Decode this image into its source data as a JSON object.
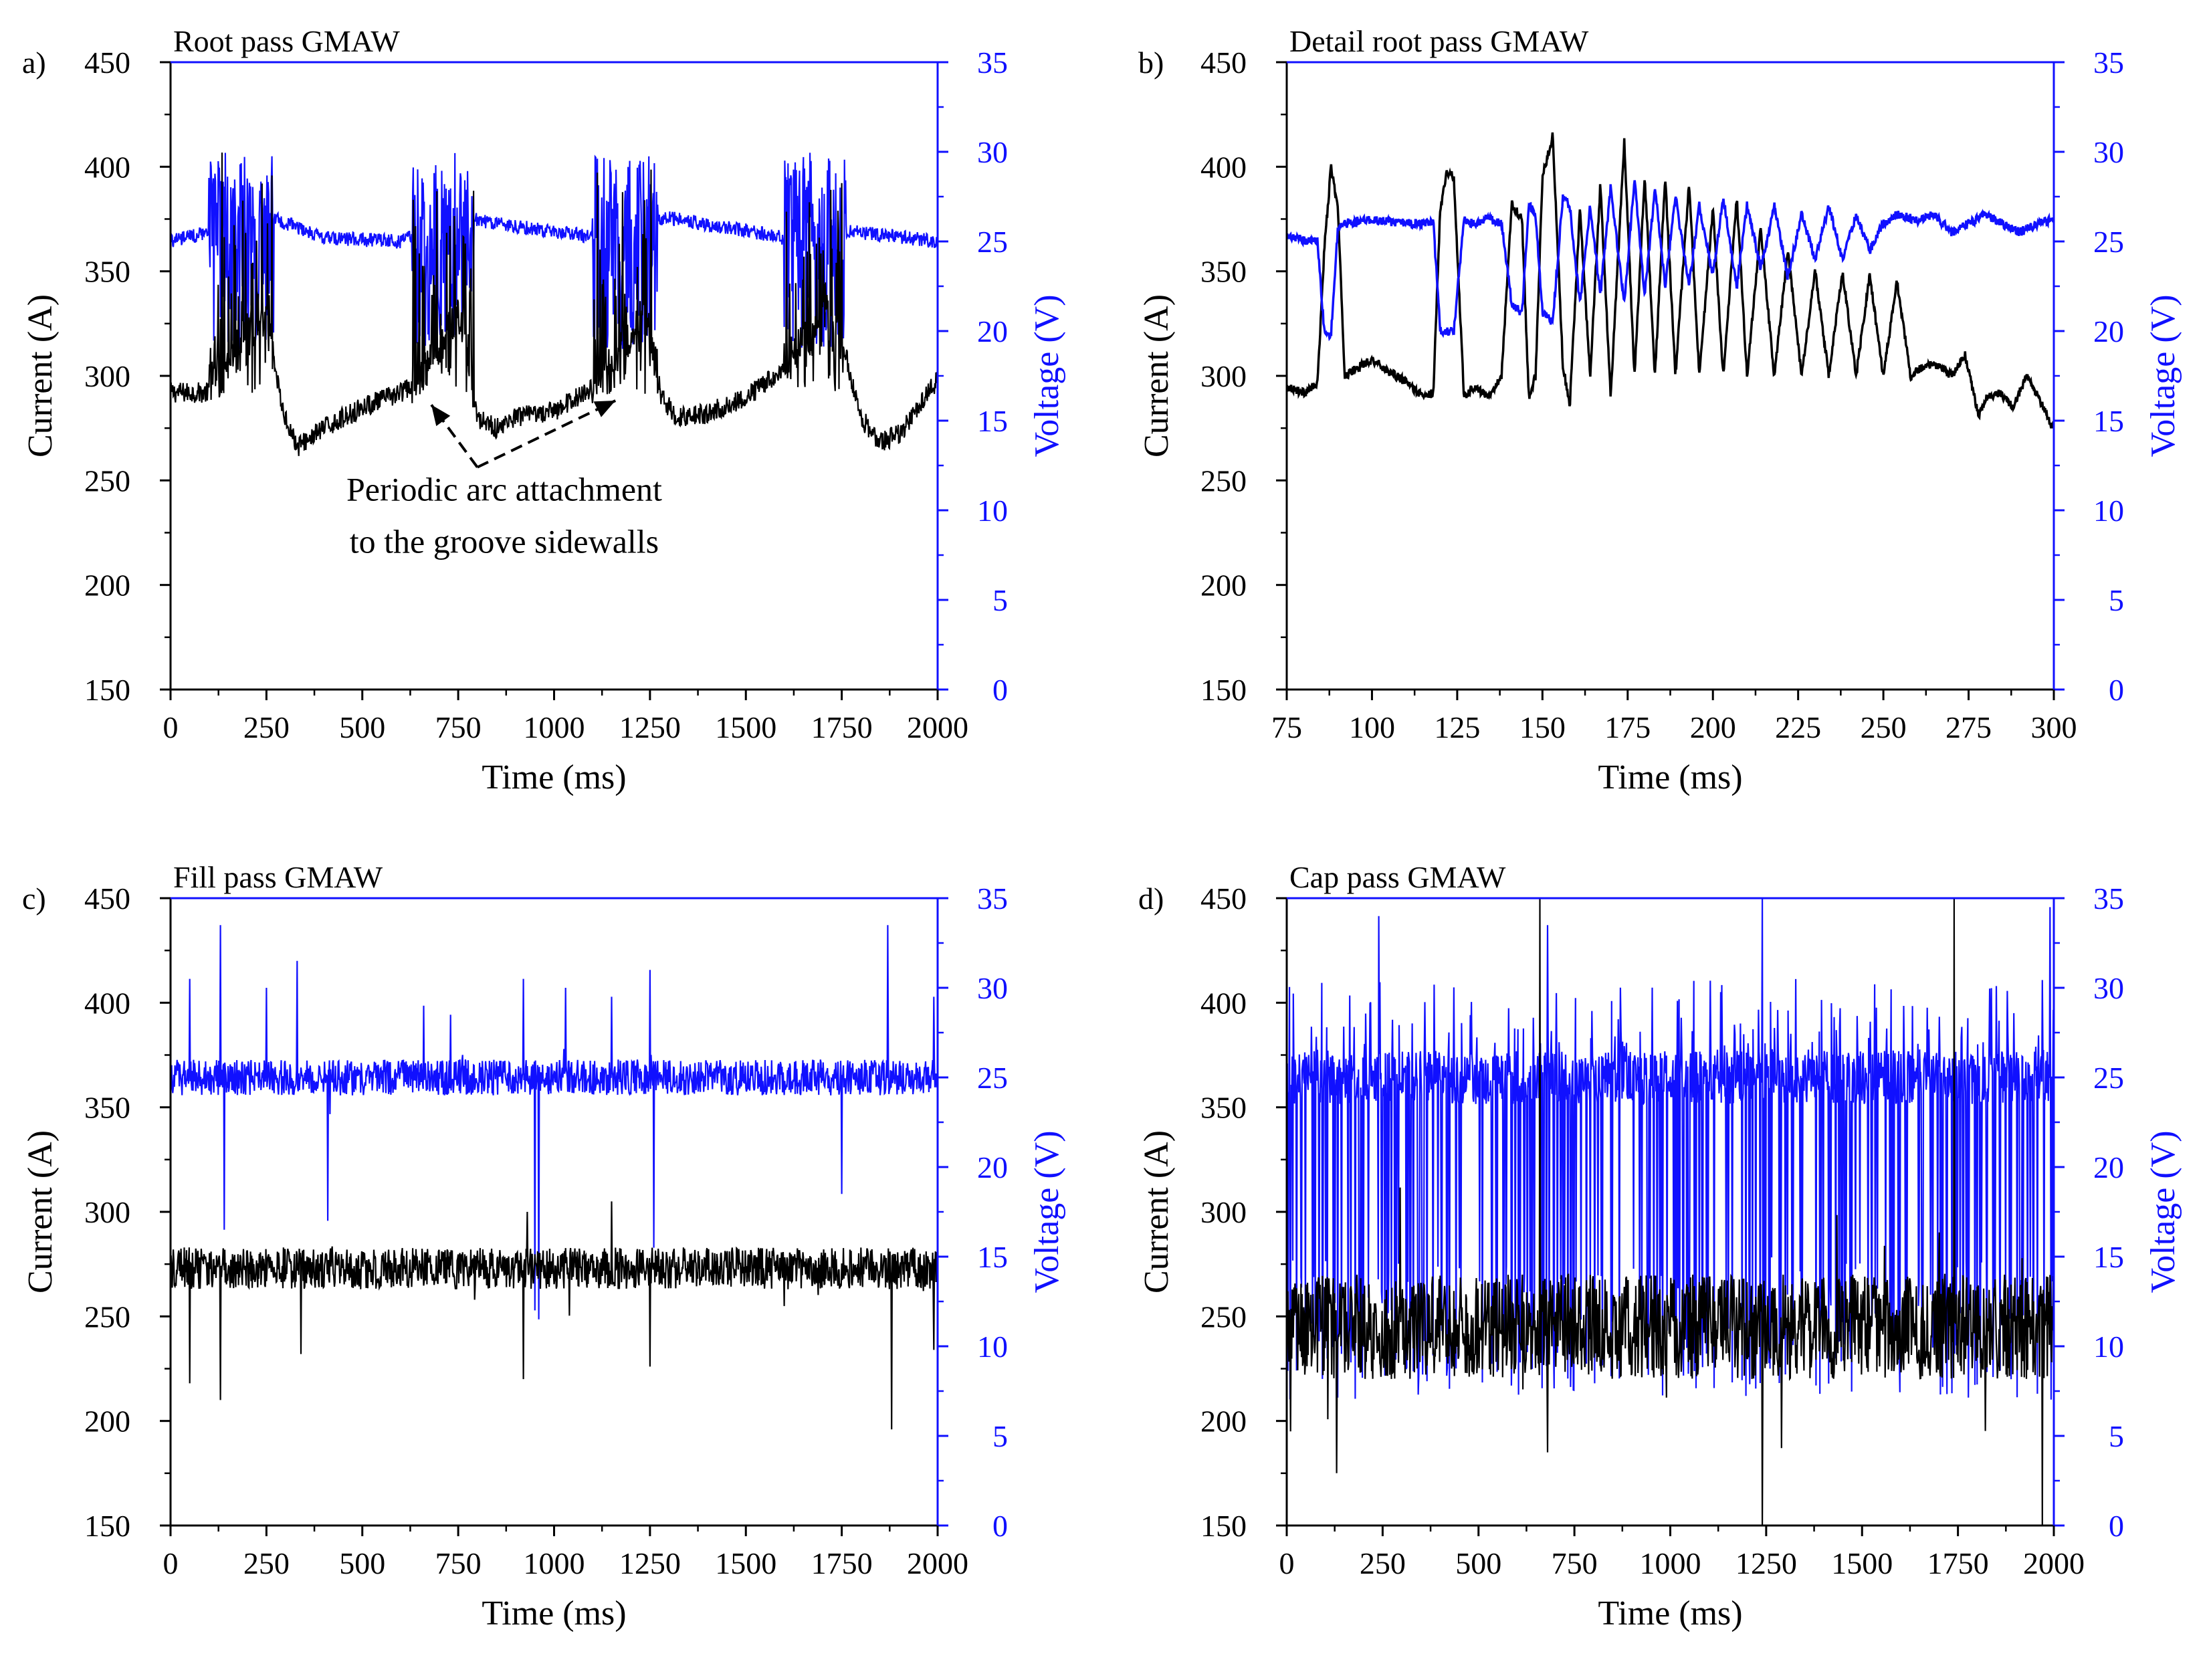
{
  "colors": {
    "current": "#000000",
    "voltage": "#1010ff"
  },
  "chart_data": [
    {
      "type": "line",
      "panel": "a)",
      "title": "Root pass GMAW",
      "xlabel": "Time (ms)",
      "ylabel_left": "Current (A)",
      "ylabel_right": "Voltage (V)",
      "xlim": [
        0,
        2000
      ],
      "ylim_left": [
        150,
        450
      ],
      "ylim_right": [
        0,
        35
      ],
      "xticks": [
        "0",
        "250",
        "500",
        "750",
        "1000",
        "1250",
        "1500",
        "1750",
        "2000"
      ],
      "yticks_left": [
        "150",
        "200",
        "250",
        "300",
        "350",
        "400",
        "450"
      ],
      "yticks_right": [
        "0",
        "5",
        "10",
        "15",
        "20",
        "25",
        "30",
        "35"
      ],
      "annotation": {
        "lines": [
          "Periodic arc attachment",
          "to the groove sidewalls"
        ],
        "targets_ms": [
          680,
          1160
        ],
        "targets_current": [
          290,
          292
        ]
      },
      "series": [
        {
          "name": "Current",
          "axis": "left",
          "color": "#000000",
          "x": [
            0,
            100,
            140,
            200,
            250,
            290,
            330,
            400,
            500,
            600,
            640,
            700,
            760,
            800,
            850,
            900,
            1000,
            1080,
            1140,
            1200,
            1240,
            1280,
            1320,
            1400,
            1500,
            1580,
            1620,
            1680,
            1720,
            1760,
            1800,
            1850,
            1900,
            2000
          ],
          "y": [
            292,
            292,
            300,
            320,
            330,
            285,
            266,
            275,
            285,
            292,
            296,
            315,
            330,
            280,
            275,
            280,
            283,
            292,
            300,
            320,
            330,
            290,
            280,
            282,
            290,
            300,
            310,
            325,
            335,
            310,
            280,
            268,
            272,
            298
          ],
          "bursts_ms": [
            [
              100,
              270
            ],
            [
              630,
              790
            ],
            [
              1100,
              1270
            ],
            [
              1600,
              1760
            ]
          ],
          "burst_current_range": [
            290,
            415
          ]
        },
        {
          "name": "Voltage",
          "axis": "right",
          "color": "#1010ff",
          "x": [
            0,
            100,
            180,
            280,
            400,
            600,
            700,
            800,
            1000,
            1150,
            1200,
            1300,
            1500,
            1600,
            1700,
            1800,
            2000
          ],
          "y": [
            25.0,
            25.5,
            26.5,
            26.2,
            25.2,
            25.0,
            26.0,
            26.2,
            25.5,
            25.2,
            26.0,
            26.3,
            25.6,
            25.2,
            25.8,
            25.5,
            25.0
          ],
          "bursts_ms": [
            [
              100,
              270
            ],
            [
              630,
              790
            ],
            [
              1100,
              1270
            ],
            [
              1600,
              1760
            ]
          ],
          "burst_voltage_range": [
            19,
            30
          ]
        }
      ]
    },
    {
      "type": "line",
      "panel": "b)",
      "title": "Detail root pass GMAW",
      "xlabel": "Time (ms)",
      "ylabel_left": "Current (A)",
      "ylabel_right": "Voltage (V)",
      "xlim": [
        75,
        300
      ],
      "ylim_left": [
        150,
        450
      ],
      "ylim_right": [
        0,
        35
      ],
      "xticks": [
        "75",
        "100",
        "125",
        "150",
        "175",
        "200",
        "225",
        "250",
        "275",
        "300"
      ],
      "yticks_left": [
        "150",
        "200",
        "250",
        "300",
        "350",
        "400",
        "450"
      ],
      "yticks_right": [
        "0",
        "5",
        "10",
        "15",
        "20",
        "25",
        "30",
        "35"
      ],
      "series": [
        {
          "name": "Current",
          "axis": "left",
          "color": "#000000",
          "x": [
            75,
            80,
            84,
            86,
            88,
            90,
            92,
            95,
            100,
            105,
            110,
            115,
            118,
            120,
            122,
            124,
            127,
            130,
            134,
            138,
            141,
            144,
            146,
            148,
            150,
            153,
            156,
            158,
            161,
            164,
            167,
            170,
            174,
            177,
            180,
            183,
            186,
            189,
            193,
            196,
            200,
            203,
            207,
            210,
            214,
            218,
            222,
            226,
            230,
            234,
            238,
            242,
            246,
            250,
            254,
            258,
            262,
            266,
            270,
            274,
            278,
            280,
            284,
            288,
            292,
            296,
            300
          ],
          "y": [
            295,
            292,
            296,
            360,
            400,
            380,
            300,
            303,
            308,
            302,
            297,
            290,
            292,
            380,
            398,
            395,
            290,
            295,
            290,
            300,
            382,
            375,
            290,
            300,
            395,
            415,
            305,
            285,
            380,
            300,
            392,
            290,
            412,
            300,
            395,
            300,
            395,
            300,
            392,
            300,
            380,
            300,
            385,
            300,
            370,
            300,
            360,
            300,
            350,
            300,
            350,
            300,
            348,
            300,
            345,
            300,
            305,
            305,
            300,
            310,
            280,
            290,
            292,
            285,
            300,
            288,
            274
          ]
        },
        {
          "name": "Voltage",
          "axis": "right",
          "color": "#1010ff",
          "x": [
            75,
            84,
            86,
            88,
            90,
            92,
            100,
            110,
            118,
            120,
            124,
            127,
            130,
            134,
            138,
            141,
            144,
            146,
            148,
            150,
            153,
            156,
            158,
            161,
            164,
            167,
            170,
            174,
            177,
            180,
            183,
            186,
            189,
            193,
            196,
            200,
            203,
            207,
            210,
            214,
            218,
            222,
            226,
            230,
            234,
            238,
            242,
            246,
            250,
            254,
            260,
            265,
            270,
            275,
            280,
            285,
            290,
            295,
            300
          ],
          "y": [
            25.2,
            25.0,
            20.0,
            19.8,
            25.8,
            26.0,
            26.2,
            26.0,
            26.0,
            20.0,
            20.0,
            26.2,
            26.0,
            26.3,
            26.0,
            21.5,
            21.0,
            27.0,
            26.5,
            21.0,
            20.5,
            27.5,
            27.0,
            21.5,
            27.0,
            22.0,
            28.0,
            21.5,
            28.5,
            22.0,
            28.0,
            22.5,
            27.5,
            22.5,
            27.0,
            23.0,
            27.5,
            22.5,
            27.0,
            23.5,
            27.0,
            23.0,
            26.5,
            24.0,
            27.0,
            24.0,
            26.5,
            24.5,
            26.0,
            26.5,
            26.2,
            26.5,
            25.5,
            26.0,
            26.5,
            26.0,
            25.5,
            26.0,
            26.2
          ]
        }
      ]
    },
    {
      "type": "line",
      "panel": "c)",
      "title": "Fill pass GMAW",
      "xlabel": "Time (ms)",
      "ylabel_left": "Current (A)",
      "ylabel_right": "Voltage (V)",
      "xlim": [
        0,
        2000
      ],
      "ylim_left": [
        150,
        450
      ],
      "ylim_right": [
        0,
        35
      ],
      "xticks": [
        "0",
        "250",
        "500",
        "750",
        "1000",
        "1250",
        "1500",
        "1750",
        "2000"
      ],
      "yticks_left": [
        "150",
        "200",
        "250",
        "300",
        "350",
        "400",
        "450"
      ],
      "yticks_right": [
        "0",
        "5",
        "10",
        "15",
        "20",
        "25",
        "30",
        "35"
      ],
      "series": [
        {
          "name": "Current",
          "axis": "left",
          "color": "#000000",
          "mean": 273,
          "noise_amplitude": 10,
          "x": [
            0,
            2000
          ],
          "y": [
            273,
            273
          ],
          "spikes_ms": [
            [
              50,
              218
            ],
            [
              130,
              210
            ],
            [
              340,
              232
            ],
            [
              920,
              220
            ],
            [
              930,
              300
            ],
            [
              1150,
              305
            ],
            [
              1250,
              226
            ],
            [
              1880,
              196
            ],
            [
              1990,
              234
            ]
          ]
        },
        {
          "name": "Voltage",
          "axis": "right",
          "color": "#1010ff",
          "mean": 25.0,
          "noise_amplitude": 1.0,
          "x": [
            0,
            2000
          ],
          "y": [
            25.0,
            25.0
          ],
          "spikes_ms": [
            [
              50,
              30.5
            ],
            [
              130,
              33.5
            ],
            [
              250,
              30.0
            ],
            [
              330,
              31.5
            ],
            [
              660,
              29.0
            ],
            [
              730,
              28.5
            ],
            [
              920,
              30.5
            ],
            [
              1030,
              30.0
            ],
            [
              1150,
              29.5
            ],
            [
              1250,
              31.0
            ],
            [
              1870,
              33.5
            ],
            [
              1990,
              29.5
            ],
            [
              140,
              16.5
            ],
            [
              410,
              17.0
            ],
            [
              950,
              12.0
            ],
            [
              960,
              11.5
            ],
            [
              1260,
              15.5
            ],
            [
              1750,
              18.5
            ]
          ]
        }
      ]
    },
    {
      "type": "line",
      "panel": "d)",
      "title": "Cap pass GMAW",
      "xlabel": "Time (ms)",
      "ylabel_left": "Current (A)",
      "ylabel_right": "Voltage (V)",
      "xlim": [
        0,
        2000
      ],
      "ylim_left": [
        150,
        450
      ],
      "ylim_right": [
        0,
        35
      ],
      "xticks": [
        "0",
        "250",
        "500",
        "750",
        "1000",
        "1250",
        "1500",
        "1750",
        "2000"
      ],
      "yticks_left": [
        "150",
        "200",
        "250",
        "300",
        "350",
        "400",
        "450"
      ],
      "yticks_right": [
        "0",
        "5",
        "10",
        "15",
        "20",
        "25",
        "30",
        "35"
      ],
      "series": [
        {
          "name": "Current",
          "axis": "left",
          "color": "#000000",
          "mean": 245,
          "noise_amplitude": 25,
          "x": [
            0,
            2000
          ],
          "y": [
            245,
            245
          ],
          "spikes_ms": [
            [
              10,
              195
            ],
            [
              130,
              175
            ],
            [
              660,
              450
            ],
            [
              680,
              185
            ],
            [
              1240,
              150
            ],
            [
              1290,
              187
            ],
            [
              1740,
              450
            ],
            [
              1970,
              150
            ]
          ]
        },
        {
          "name": "Voltage",
          "axis": "right",
          "color": "#1010ff",
          "mean": 25.0,
          "short_circuit_min": 7.0,
          "peak_max": 30.5,
          "x": [
            0,
            2000
          ],
          "y": [
            25.0,
            25.0
          ],
          "spikes_ms": [
            [
              240,
              34.0
            ],
            [
              680,
              33.5
            ],
            [
              1240,
              35.0
            ],
            [
              1990,
              34.5
            ]
          ]
        }
      ]
    }
  ]
}
